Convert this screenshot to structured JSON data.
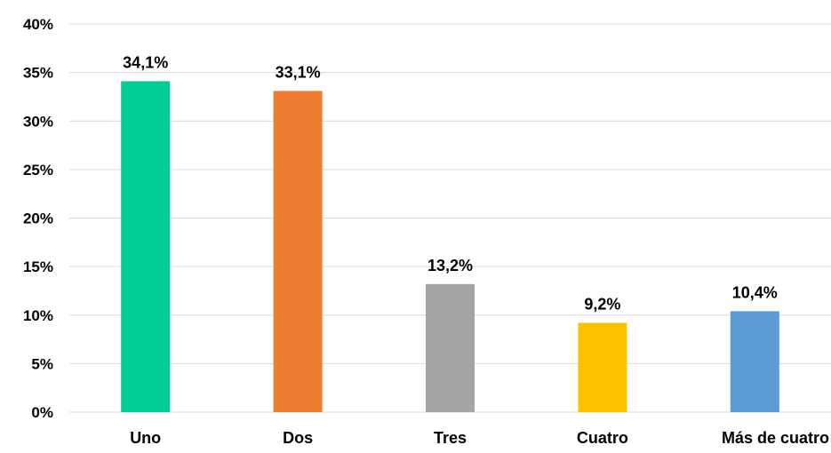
{
  "chart_data": {
    "type": "bar",
    "categories": [
      "Uno",
      "Dos",
      "Tres",
      "Cuatro",
      "Más de cuatro"
    ],
    "values": [
      34.1,
      33.1,
      13.2,
      9.2,
      10.4
    ],
    "data_labels": [
      "34,1%",
      "33,1%",
      "13,2%",
      "9,2%",
      "10,4%"
    ],
    "bar_colors": [
      "#00CC96",
      "#ED7D31",
      "#A5A5A5",
      "#FFC000",
      "#5B9BD5"
    ],
    "ylim": [
      0,
      40
    ],
    "yticks": [
      0,
      5,
      10,
      15,
      20,
      25,
      30,
      35,
      40
    ],
    "ytick_labels": [
      "0%",
      "5%",
      "10%",
      "15%",
      "20%",
      "25%",
      "30%",
      "35%",
      "40%"
    ],
    "grid": true,
    "grid_color": "#D9D9D9",
    "title": "",
    "xlabel": "",
    "ylabel": ""
  }
}
